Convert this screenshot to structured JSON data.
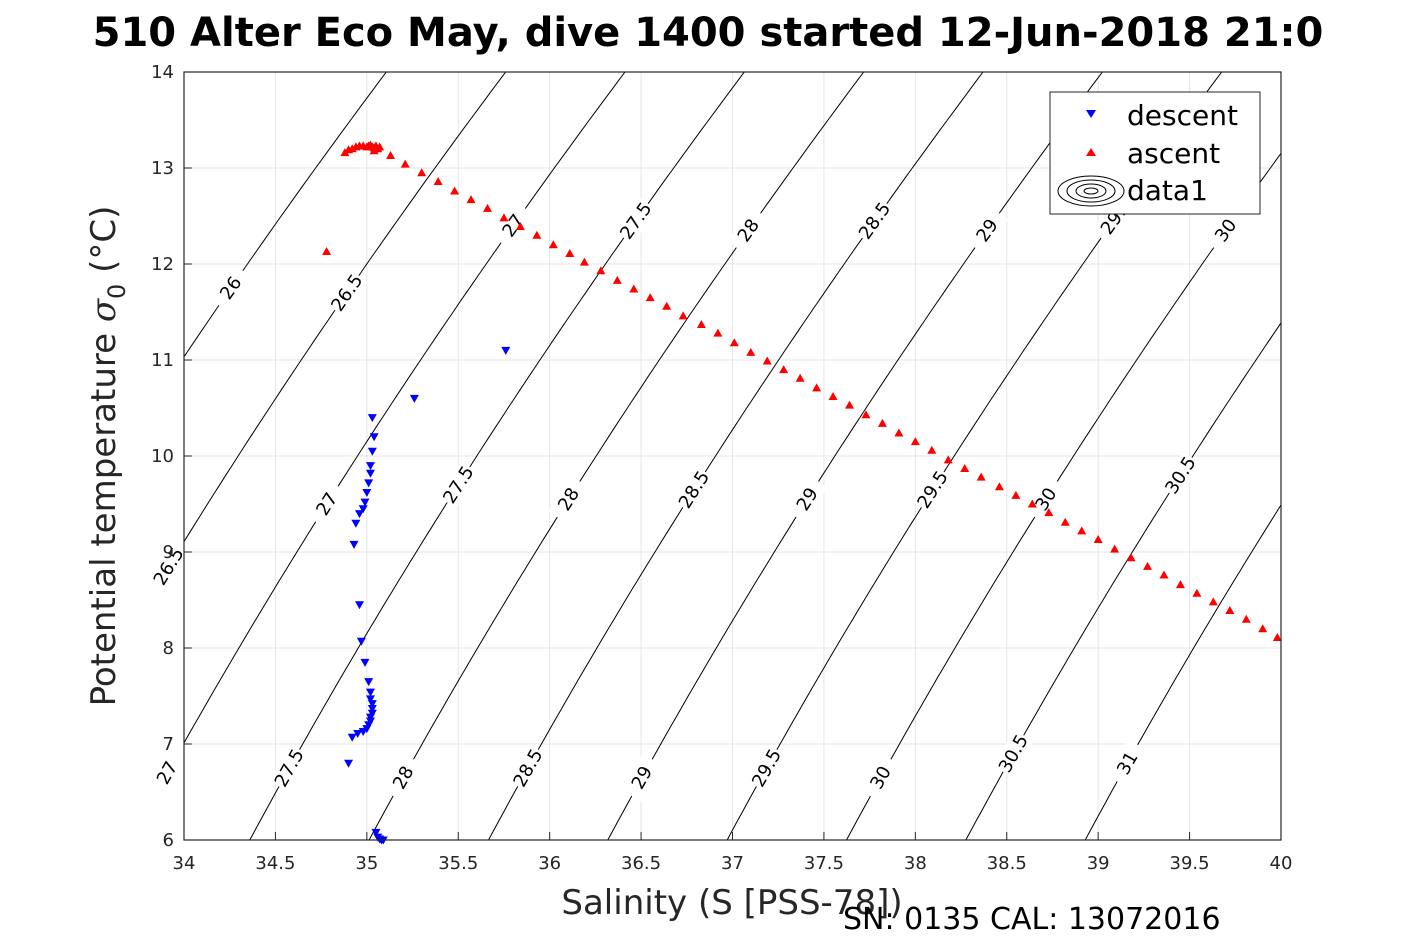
{
  "chart_data": {
    "type": "scatter",
    "title": "510 Alter Eco May, dive 1400 started 12-Jun-2018 21:0",
    "xlabel": "Salinity (S [PSS-78])",
    "ylabel_text": "Potential temperature ",
    "ylabel_symbol": "σ",
    "ylabel_subscript": "0",
    "ylabel_unit": " (°C)",
    "xlim": [
      34,
      40
    ],
    "ylim": [
      6,
      14
    ],
    "xticks": [
      34,
      34.5,
      35,
      35.5,
      36,
      36.5,
      37,
      37.5,
      38,
      38.5,
      39,
      39.5,
      40
    ],
    "xtick_labels": [
      "34",
      "34.5",
      "35",
      "35.5",
      "36",
      "36.5",
      "37",
      "37.5",
      "38",
      "38.5",
      "39",
      "39.5",
      "40"
    ],
    "yticks": [
      6,
      7,
      8,
      9,
      10,
      11,
      12,
      13,
      14
    ],
    "ytick_labels": [
      "6",
      "7",
      "8",
      "9",
      "10",
      "11",
      "12",
      "13",
      "14"
    ],
    "grid": true,
    "legend_position": "top-right",
    "footer": "SN: 0135  CAL: 13072016",
    "contours": {
      "levels": [
        26,
        26.5,
        27,
        27.5,
        28,
        28.5,
        29,
        29.5,
        30,
        30.5,
        31
      ],
      "color": "#000000",
      "labels": [
        {
          "text": "26",
          "level": 26,
          "y": 11.75
        },
        {
          "text": "26.5",
          "level": 26.5,
          "y": 11.7
        },
        {
          "text": "27",
          "level": 27,
          "y": 12.4
        },
        {
          "text": "27.5",
          "level": 27.5,
          "y": 12.45
        },
        {
          "text": "28",
          "level": 28,
          "y": 12.35
        },
        {
          "text": "28.5",
          "level": 28.5,
          "y": 12.45
        },
        {
          "text": "29",
          "level": 29,
          "y": 12.35
        },
        {
          "text": "29.",
          "level": 29.5,
          "y": 12.45
        },
        {
          "text": "30",
          "level": 30,
          "y": 12.35
        },
        {
          "text": "26.5",
          "level": 26.5,
          "y": 8.85
        },
        {
          "text": "27",
          "level": 27,
          "y": 9.5
        },
        {
          "text": "27.5",
          "level": 27.5,
          "y": 9.7
        },
        {
          "text": "28",
          "level": 28,
          "y": 9.55
        },
        {
          "text": "28.5",
          "level": 28.5,
          "y": 9.65
        },
        {
          "text": "29",
          "level": 29,
          "y": 9.55
        },
        {
          "text": "29.5",
          "level": 29.5,
          "y": 9.65
        },
        {
          "text": "30",
          "level": 30,
          "y": 9.55
        },
        {
          "text": "30.5",
          "level": 30.5,
          "y": 9.8
        },
        {
          "text": "27",
          "level": 27,
          "y": 6.7
        },
        {
          "text": "27.5",
          "level": 27.5,
          "y": 6.75
        },
        {
          "text": "28",
          "level": 28,
          "y": 6.65
        },
        {
          "text": "28.5",
          "level": 28.5,
          "y": 6.75
        },
        {
          "text": "29",
          "level": 29,
          "y": 6.65
        },
        {
          "text": "29.5",
          "level": 29.5,
          "y": 6.75
        },
        {
          "text": "30",
          "level": 30,
          "y": 6.65
        },
        {
          "text": "30.5",
          "level": 30.5,
          "y": 6.9
        },
        {
          "text": "31",
          "level": 31,
          "y": 6.8
        }
      ]
    },
    "series": [
      {
        "name": "descent",
        "marker": "triangle-down",
        "color": "#0000ff",
        "x": [
          35.76,
          35.26,
          35.03,
          35.04,
          35.03,
          35.02,
          35.02,
          35.01,
          35.0,
          34.99,
          34.98,
          34.96,
          34.94,
          34.93,
          34.96,
          34.97,
          34.99,
          35.01,
          35.02,
          35.02,
          35.03,
          35.03,
          35.03,
          35.02,
          35.02,
          35.01,
          35.0,
          34.98,
          34.95,
          34.92,
          34.9,
          35.05,
          35.06,
          35.07,
          35.08,
          35.09
        ],
        "y": [
          11.1,
          10.6,
          10.4,
          10.2,
          10.05,
          9.9,
          9.82,
          9.72,
          9.62,
          9.52,
          9.45,
          9.4,
          9.3,
          9.08,
          8.45,
          8.07,
          7.85,
          7.65,
          7.54,
          7.47,
          7.42,
          7.37,
          7.32,
          7.28,
          7.24,
          7.2,
          7.16,
          7.13,
          7.11,
          7.07,
          6.8,
          6.08,
          6.03,
          6.01,
          6.0,
          6.0
        ]
      },
      {
        "name": "ascent",
        "marker": "triangle-up",
        "color": "#ff0000",
        "x": [
          34.78,
          34.88,
          34.9,
          34.92,
          34.94,
          34.96,
          34.98,
          35.0,
          35.01,
          35.02,
          35.03,
          35.04,
          35.05,
          35.06,
          35.04,
          35.07,
          35.13,
          35.21,
          35.3,
          35.39,
          35.48,
          35.57,
          35.66,
          35.75,
          35.84,
          35.93,
          36.02,
          36.11,
          36.19,
          36.28,
          36.37,
          36.46,
          36.55,
          36.64,
          36.73,
          36.83,
          36.92,
          37.01,
          37.1,
          37.19,
          37.28,
          37.37,
          37.46,
          37.55,
          37.64,
          37.73,
          37.82,
          37.91,
          38.0,
          38.09,
          38.18,
          38.27,
          38.36,
          38.46,
          38.55,
          38.64,
          38.73,
          38.82,
          38.91,
          39.0,
          39.09,
          39.18,
          39.27,
          39.36,
          39.45,
          39.54,
          39.63,
          39.72,
          39.81,
          39.9,
          39.98
        ],
        "y": [
          12.13,
          13.16,
          13.19,
          13.2,
          13.22,
          13.23,
          13.23,
          13.22,
          13.23,
          13.24,
          13.22,
          13.21,
          13.23,
          13.2,
          13.18,
          13.22,
          13.13,
          13.04,
          12.95,
          12.86,
          12.76,
          12.67,
          12.58,
          12.48,
          12.39,
          12.3,
          12.2,
          12.11,
          12.02,
          11.93,
          11.83,
          11.74,
          11.65,
          11.56,
          11.46,
          11.37,
          11.28,
          11.18,
          11.08,
          10.99,
          10.9,
          10.81,
          10.71,
          10.62,
          10.53,
          10.43,
          10.34,
          10.24,
          10.15,
          10.06,
          9.96,
          9.87,
          9.78,
          9.68,
          9.59,
          9.5,
          9.41,
          9.31,
          9.22,
          9.13,
          9.03,
          8.94,
          8.85,
          8.76,
          8.66,
          8.57,
          8.48,
          8.39,
          8.3,
          8.2,
          8.11
        ]
      },
      {
        "name": "data1",
        "marker": "contour",
        "color": "#000000",
        "x": [],
        "y": []
      }
    ]
  }
}
